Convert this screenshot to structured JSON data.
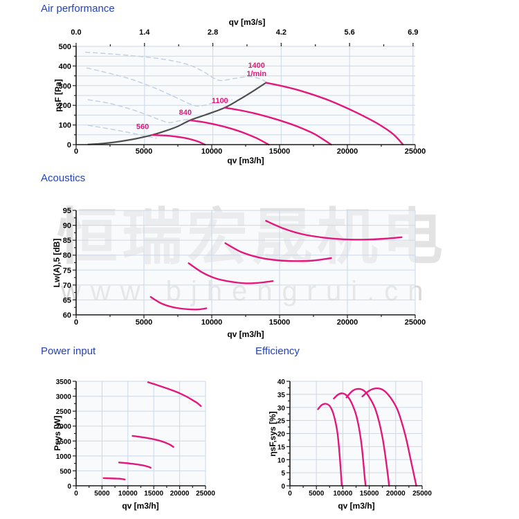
{
  "watermark": {
    "cjk": "恒瑞宏晟机电",
    "latin": "www.bjhengrui.cn"
  },
  "sections": {
    "air": {
      "title": "Air performance"
    },
    "acoustics": {
      "title": "Acoustics"
    },
    "power": {
      "title": "Power input"
    },
    "efficiency": {
      "title": "Efficiency"
    }
  },
  "colors": {
    "title_blue": "#2242bb",
    "curve_pink": "#e2187d",
    "limit_gray": "#4f4f4f",
    "dashed_blue": "#c4d1e3",
    "grid": "#ccd7e8",
    "axis": "#1b1b1b",
    "plot_bg": "#f1f5fa",
    "tick_text": "#000000"
  },
  "chart_data": [
    {
      "id": "air",
      "type": "line",
      "title": "Air performance",
      "xlabel": "qv [m3/h]",
      "ylabel": "psF [Pa]",
      "x2label": "qv [m3/s]",
      "xlim": [
        0,
        25000
      ],
      "ylim": [
        0,
        500
      ],
      "xtick_step": 5000,
      "xminor_step": 2500,
      "ytick_step": 100,
      "yminor_step": 50,
      "grid_y_step": 50,
      "grid_x_values": [
        5040,
        10080,
        15120,
        20160,
        24840
      ],
      "x2ticks": {
        "values": [
          0,
          5040,
          10080,
          15120,
          20160,
          24840
        ],
        "labels": [
          "0.0",
          "1.4",
          "2.8",
          "4.2",
          "5.6",
          "6.9"
        ],
        "minor": [
          2520,
          7560,
          12600,
          17640,
          22680
        ]
      },
      "series": [
        {
          "name": "dashed-560",
          "style": "dashed",
          "points": [
            [
              900,
              98
            ],
            [
              2400,
              81
            ],
            [
              4000,
              60
            ],
            [
              5100,
              44
            ],
            [
              5900,
              33
            ]
          ]
        },
        {
          "name": "dashed-840",
          "style": "dashed",
          "points": [
            [
              900,
              228
            ],
            [
              2400,
              211
            ],
            [
              4000,
              181
            ],
            [
              5300,
              149
            ],
            [
              6300,
              123
            ],
            [
              6900,
              112
            ],
            [
              7700,
              123
            ],
            [
              8400,
              130
            ]
          ]
        },
        {
          "name": "dashed-1100",
          "style": "dashed",
          "points": [
            [
              800,
              390
            ],
            [
              2200,
              367
            ],
            [
              4000,
              334
            ],
            [
              5800,
              288
            ],
            [
              7300,
              242
            ],
            [
              8500,
              204
            ],
            [
              9200,
              197
            ],
            [
              10300,
              215
            ],
            [
              11500,
              228
            ]
          ]
        },
        {
          "name": "dashed-1400",
          "style": "dashed",
          "points": [
            [
              700,
              470
            ],
            [
              2500,
              462
            ],
            [
              4500,
              450
            ],
            [
              6500,
              434
            ],
            [
              8200,
              408
            ],
            [
              9300,
              375
            ],
            [
              10100,
              340
            ],
            [
              10700,
              326
            ],
            [
              11700,
              337
            ],
            [
              12800,
              346
            ],
            [
              13600,
              334
            ],
            [
              14050,
              317
            ]
          ]
        },
        {
          "name": "max-pressure-limit",
          "style": "gray",
          "points": [
            [
              900,
              1
            ],
            [
              2000,
              6
            ],
            [
              3200,
              16
            ],
            [
              4400,
              30
            ],
            [
              5600,
              49
            ],
            [
              6600,
              70
            ],
            [
              7500,
              93
            ],
            [
              8400,
              124
            ],
            [
              9600,
              153
            ],
            [
              10950,
              188
            ],
            [
              12000,
              228
            ],
            [
              13000,
              270
            ],
            [
              14000,
              315
            ]
          ]
        },
        {
          "name": "560",
          "style": "pink",
          "label": "560",
          "label_xy": [
            4900,
            80
          ],
          "points": [
            [
              5600,
              49
            ],
            [
              6800,
              45
            ],
            [
              8000,
              34
            ],
            [
              8900,
              18
            ],
            [
              9500,
              0
            ]
          ]
        },
        {
          "name": "840",
          "style": "pink",
          "label": "840",
          "label_xy": [
            8050,
            152
          ],
          "points": [
            [
              8400,
              124
            ],
            [
              9400,
              114
            ],
            [
              10400,
              100
            ],
            [
              11400,
              82
            ],
            [
              12400,
              59
            ],
            [
              13300,
              33
            ],
            [
              14200,
              0
            ]
          ]
        },
        {
          "name": "1100",
          "style": "pink",
          "label": "1100",
          "label_xy": [
            10600,
            212
          ],
          "points": [
            [
              10950,
              188
            ],
            [
              12000,
              176
            ],
            [
              13100,
              160
            ],
            [
              14200,
              140
            ],
            [
              15300,
              117
            ],
            [
              16400,
              90
            ],
            [
              17600,
              53
            ],
            [
              18800,
              0
            ]
          ]
        },
        {
          "name": "1400",
          "style": "pink",
          "label": "1400\n1/min",
          "label_xy": [
            13300,
            390
          ],
          "points": [
            [
              14000,
              315
            ],
            [
              15200,
              298
            ],
            [
              16400,
              277
            ],
            [
              17600,
              251
            ],
            [
              18800,
              221
            ],
            [
              20000,
              185
            ],
            [
              21200,
              145
            ],
            [
              22400,
              100
            ],
            [
              23400,
              52
            ],
            [
              24100,
              0
            ]
          ]
        }
      ]
    },
    {
      "id": "acoustics",
      "type": "line",
      "title": "Acoustics",
      "xlabel": "qv [m3/h]",
      "ylabel": "Lw(A),5 [dB]",
      "xlim": [
        0,
        25000
      ],
      "ylim": [
        60,
        95
      ],
      "xtick_step": 5000,
      "xminor_step": 2500,
      "ytick_step": 5,
      "yminor_step": 2.5,
      "grid_y_step": 5,
      "series": [
        {
          "name": "560",
          "style": "pink",
          "points": [
            [
              5500,
              66
            ],
            [
              6300,
              63.8
            ],
            [
              7200,
              62.5
            ],
            [
              8200,
              61.9
            ],
            [
              9000,
              61.8
            ],
            [
              9600,
              62.2
            ]
          ]
        },
        {
          "name": "840",
          "style": "pink",
          "points": [
            [
              8300,
              77.3
            ],
            [
              9300,
              74.2
            ],
            [
              10300,
              72.2
            ],
            [
              11400,
              71.1
            ],
            [
              12400,
              70.6
            ],
            [
              13400,
              70.7
            ],
            [
              14500,
              71.3
            ]
          ]
        },
        {
          "name": "1100",
          "style": "pink",
          "points": [
            [
              11000,
              84
            ],
            [
              12200,
              81
            ],
            [
              13500,
              79.2
            ],
            [
              14800,
              78.3
            ],
            [
              16200,
              78
            ],
            [
              17500,
              78.2
            ],
            [
              18800,
              79
            ]
          ]
        },
        {
          "name": "1400",
          "style": "pink",
          "points": [
            [
              14000,
              91.5
            ],
            [
              15300,
              88.9
            ],
            [
              16700,
              87
            ],
            [
              18200,
              85.9
            ],
            [
              19700,
              85.3
            ],
            [
              21200,
              85.2
            ],
            [
              22700,
              85.5
            ],
            [
              24000,
              86
            ]
          ]
        }
      ]
    },
    {
      "id": "power",
      "type": "line",
      "title": "Power input",
      "xlabel": "qv [m3/h]",
      "ylabel": "Psys [W]",
      "xlim": [
        0,
        25000
      ],
      "ylim": [
        0,
        3500
      ],
      "xtick_step": 5000,
      "xminor_step": 2500,
      "ytick_step": 500,
      "yminor_step": 250,
      "grid_y_step": 500,
      "series": [
        {
          "name": "560",
          "style": "pink",
          "points": [
            [
              5300,
              256
            ],
            [
              6300,
              250
            ],
            [
              7500,
              243
            ],
            [
              8600,
              235
            ],
            [
              9400,
              212
            ]
          ]
        },
        {
          "name": "840",
          "style": "pink",
          "points": [
            [
              8300,
              780
            ],
            [
              9300,
              765
            ],
            [
              10500,
              745
            ],
            [
              11700,
              718
            ],
            [
              12900,
              685
            ],
            [
              13900,
              640
            ],
            [
              14400,
              605
            ]
          ]
        },
        {
          "name": "1100",
          "style": "pink",
          "points": [
            [
              10900,
              1670
            ],
            [
              12000,
              1645
            ],
            [
              13200,
              1615
            ],
            [
              14500,
              1575
            ],
            [
              15800,
              1525
            ],
            [
              17000,
              1460
            ],
            [
              18100,
              1380
            ],
            [
              18800,
              1300
            ]
          ]
        },
        {
          "name": "1400",
          "style": "pink",
          "points": [
            [
              13900,
              3470
            ],
            [
              15000,
              3410
            ],
            [
              16200,
              3340
            ],
            [
              17400,
              3270
            ],
            [
              18700,
              3190
            ],
            [
              20000,
              3100
            ],
            [
              21300,
              2990
            ],
            [
              22500,
              2870
            ],
            [
              23500,
              2760
            ],
            [
              24100,
              2670
            ]
          ]
        }
      ]
    },
    {
      "id": "efficiency",
      "type": "line",
      "title": "Efficiency",
      "xlabel": "qv [m3/h]",
      "ylabel": "ηsF,sys [%]",
      "xlim": [
        0,
        25000
      ],
      "ylim": [
        0,
        40
      ],
      "xtick_step": 5000,
      "xminor_step": 2500,
      "ytick_step": 5,
      "yminor_step": 2.5,
      "grid_y_step": 5,
      "series": [
        {
          "name": "560",
          "style": "pink",
          "points": [
            [
              5300,
              29.3
            ],
            [
              6000,
              30.9
            ],
            [
              6800,
              31.4
            ],
            [
              7600,
              30.3
            ],
            [
              8300,
              27
            ],
            [
              9000,
              20
            ],
            [
              9500,
              9
            ],
            [
              9800,
              0
            ]
          ]
        },
        {
          "name": "840",
          "style": "pink",
          "points": [
            [
              8300,
              33.4
            ],
            [
              9100,
              34.9
            ],
            [
              9900,
              35.4
            ],
            [
              10700,
              34.6
            ],
            [
              11600,
              32
            ],
            [
              12600,
              26.5
            ],
            [
              13500,
              16.5
            ],
            [
              14200,
              2
            ],
            [
              14350,
              0
            ]
          ]
        },
        {
          "name": "1100",
          "style": "pink",
          "points": [
            [
              10700,
              33.8
            ],
            [
              11800,
              36.3
            ],
            [
              12900,
              37.1
            ],
            [
              14000,
              36.4
            ],
            [
              15100,
              33.6
            ],
            [
              16300,
              28.5
            ],
            [
              17500,
              18.5
            ],
            [
              18400,
              6
            ],
            [
              18750,
              0
            ]
          ]
        },
        {
          "name": "1400",
          "style": "pink",
          "points": [
            [
              13700,
              34.2
            ],
            [
              15000,
              36.4
            ],
            [
              16300,
              37.3
            ],
            [
              17600,
              36.7
            ],
            [
              19000,
              33.8
            ],
            [
              20400,
              28.8
            ],
            [
              21800,
              19.5
            ],
            [
              23000,
              8.5
            ],
            [
              23900,
              0
            ]
          ]
        }
      ]
    }
  ]
}
